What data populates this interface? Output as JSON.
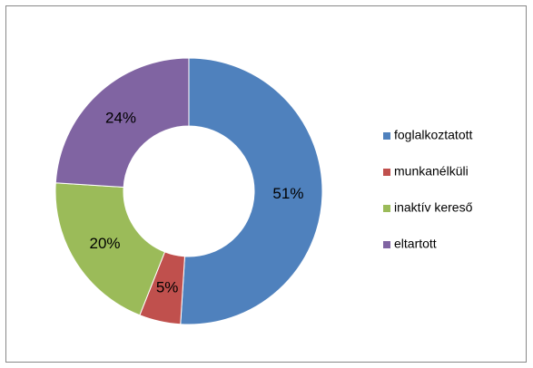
{
  "chart_data": {
    "type": "donut",
    "categories": [
      "foglalkoztatott",
      "munkanélküli",
      "inaktív kereső",
      "eltartott"
    ],
    "values": [
      51,
      5,
      20,
      24
    ],
    "value_labels": [
      "51%",
      "5%",
      "20%",
      "24%"
    ],
    "colors": [
      "#4f81bd",
      "#c0504d",
      "#9bbb59",
      "#8064a2"
    ],
    "legend": "right"
  }
}
